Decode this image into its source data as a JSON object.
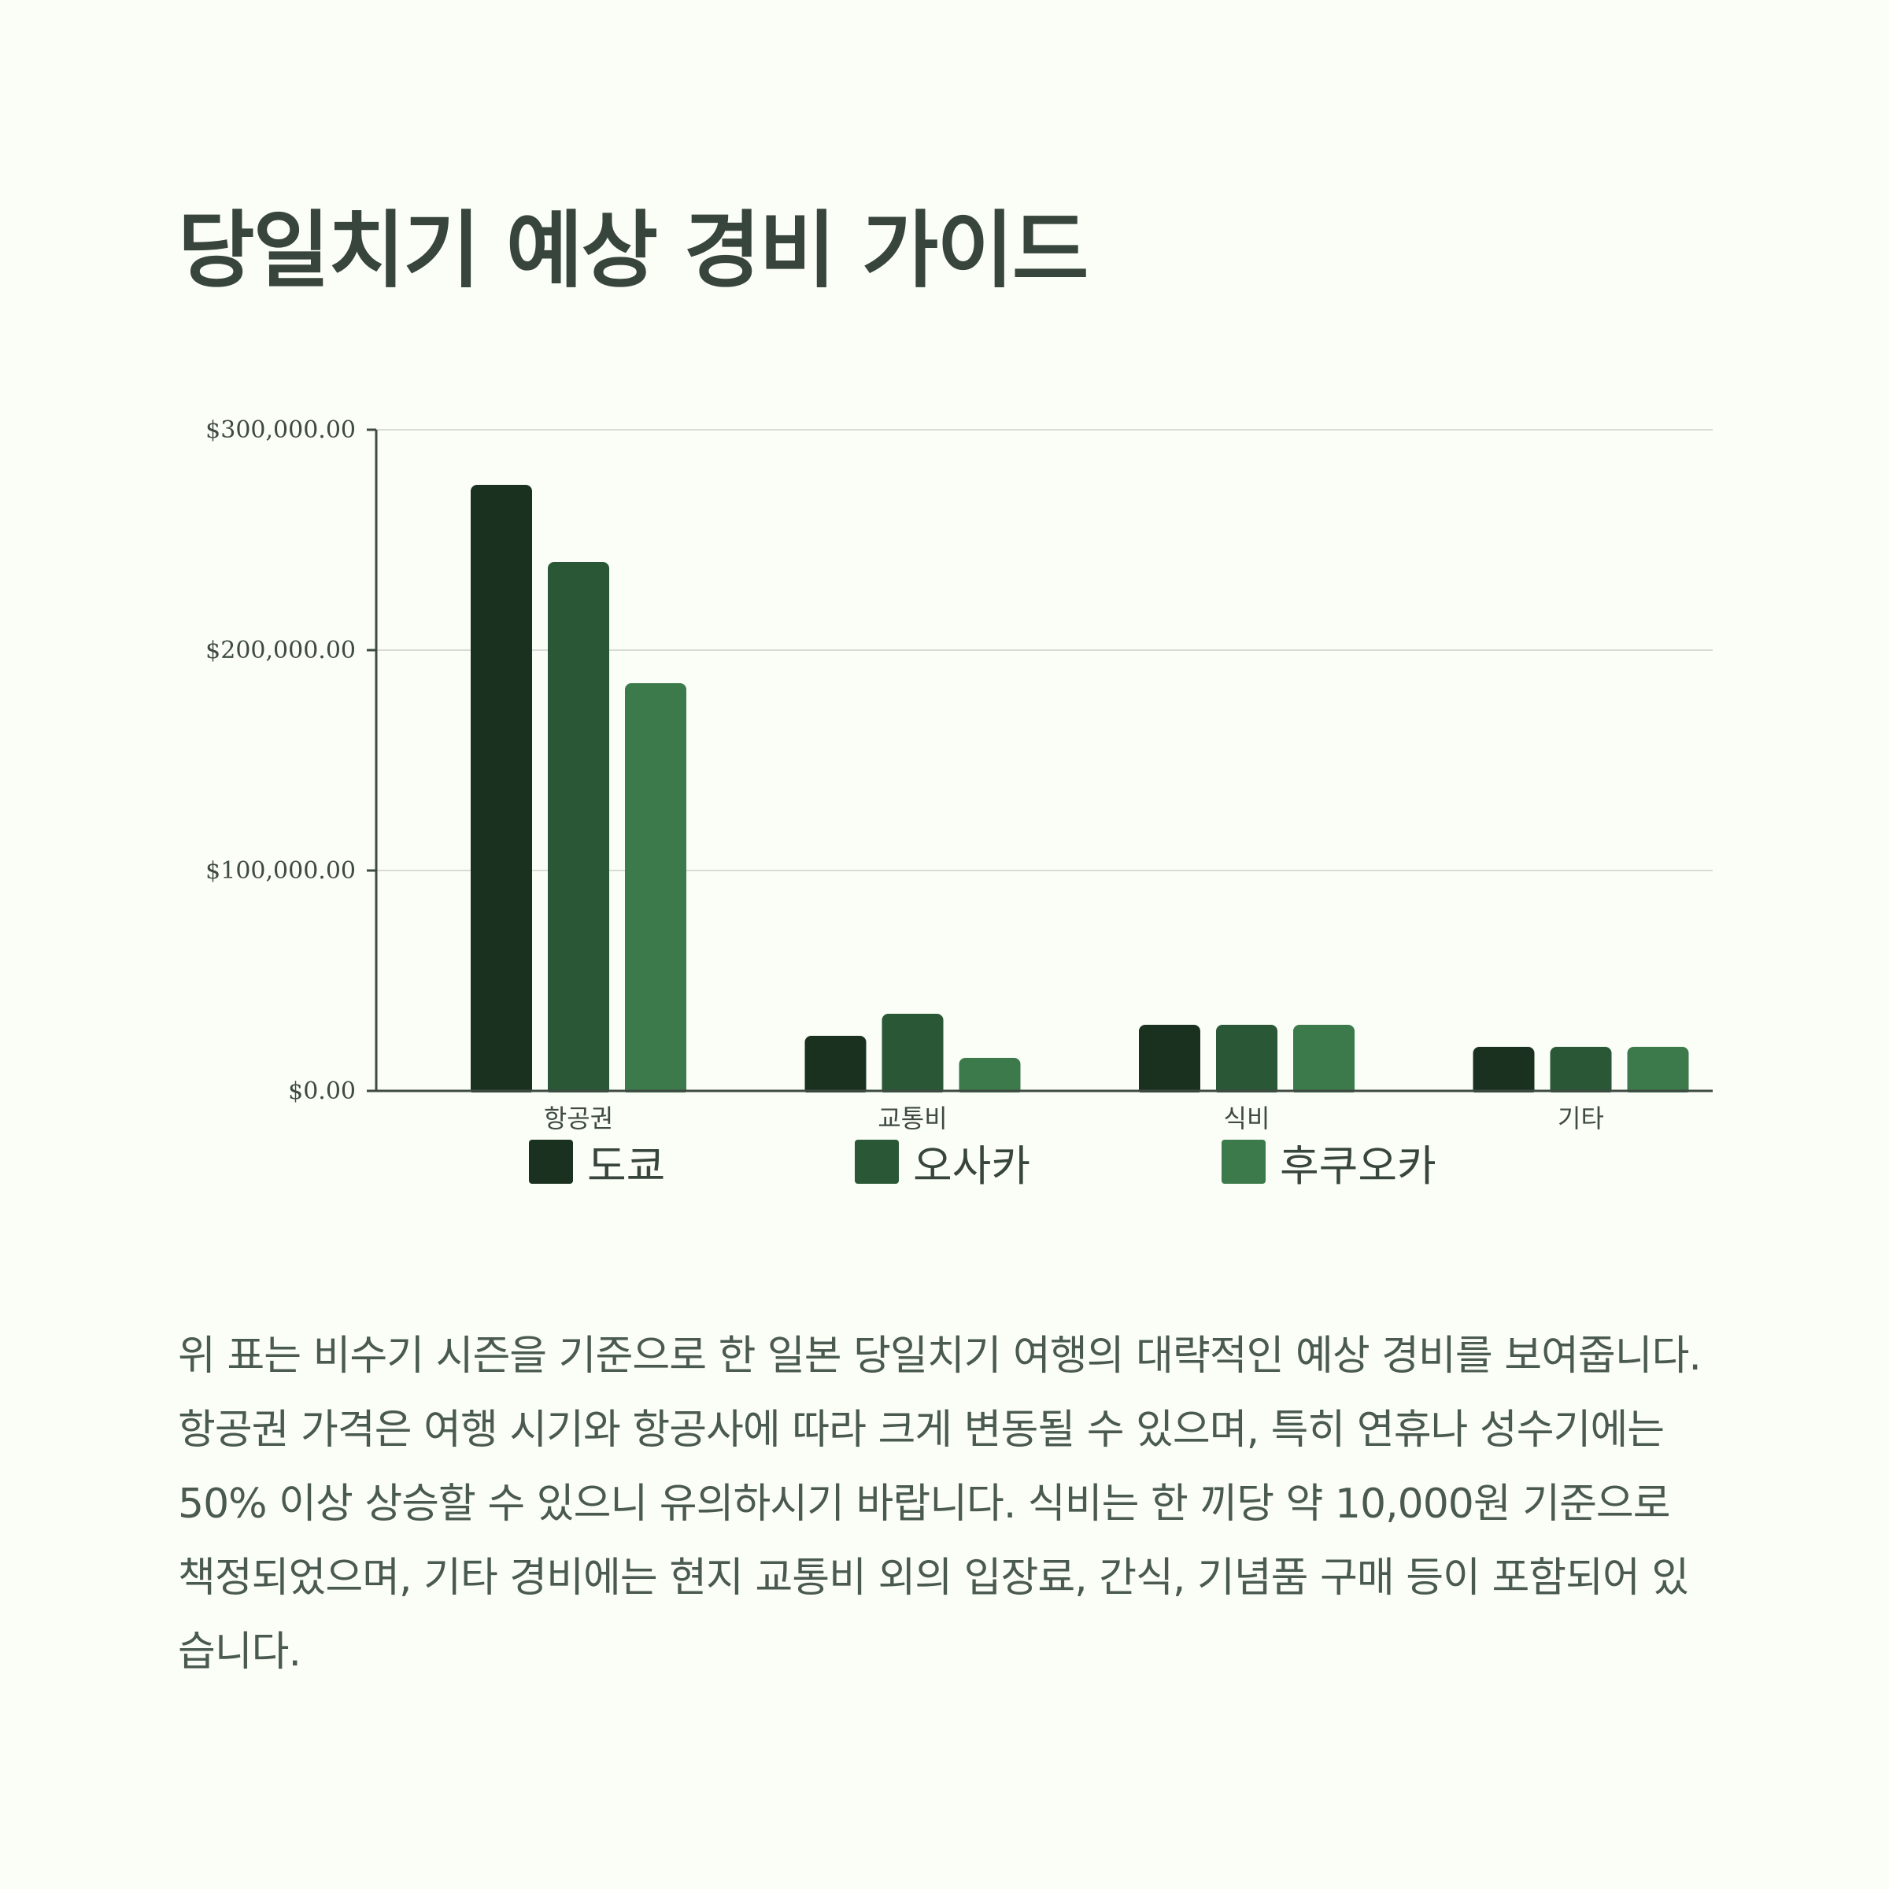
{
  "title": "당일치기 예상 경비 가이드",
  "description": "위 표는 비수기 시즌을 기준으로 한 일본 당일치기 여행의 대략적인 예상 경비를 보여줍니다. 항공권 가격은 여행 시기와 항공사에 따라 크게 변동될 수 있으며, 특히 연휴나 성수기에는 50% 이상 상승할 수 있으니 유의하시기 바랍니다. 식비는 한 끼당 약 10,000원 기준으로 책정되었으며, 기타 경비에는 현지 교통비 외의 입장료, 간식, 기념품 구매 등이 포함되어 있습니다.",
  "colors": {
    "background": "#fbfef7",
    "tokyo": "#1b3120",
    "osaka": "#2a5736",
    "fukuoka": "#3c7a4c",
    "axis": "#3e4a42",
    "grid": "#d8dcd6"
  },
  "chart_data": {
    "type": "bar",
    "categories": [
      "항공권",
      "교통비",
      "식비",
      "기타"
    ],
    "series": [
      {
        "name": "도쿄",
        "values": [
          275000,
          25000,
          30000,
          20000
        ]
      },
      {
        "name": "오사카",
        "values": [
          240000,
          35000,
          30000,
          20000
        ]
      },
      {
        "name": "후쿠오카",
        "values": [
          185000,
          15000,
          30000,
          20000
        ]
      }
    ],
    "y_ticks": [
      0,
      100000,
      200000,
      300000
    ],
    "y_tick_labels": [
      "$0.00",
      "$100,000.00",
      "$200,000.00",
      "$300,000.00"
    ],
    "ylim": [
      0,
      300000
    ],
    "grid": true,
    "legend_position": "bottom"
  }
}
